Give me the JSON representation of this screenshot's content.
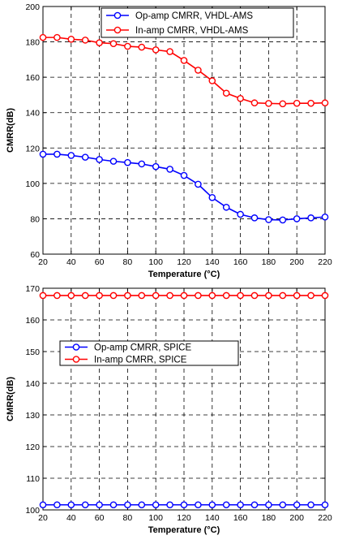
{
  "chart_data": [
    {
      "type": "line",
      "title": "",
      "xlabel": "Temperature (°C)",
      "ylabel": "CMRR(dB)",
      "xlim": [
        20,
        220
      ],
      "ylim": [
        60,
        200
      ],
      "xticks": [
        "20",
        "40",
        "60",
        "80",
        "100",
        "120",
        "140",
        "160",
        "180",
        "200",
        "220"
      ],
      "yticks": [
        "60",
        "80",
        "100",
        "120",
        "140",
        "160",
        "180",
        "200"
      ],
      "grid": true,
      "legend_position": "top-right",
      "x": [
        20,
        30,
        40,
        50,
        60,
        70,
        80,
        90,
        100,
        110,
        120,
        130,
        140,
        150,
        160,
        170,
        180,
        190,
        200,
        210,
        220
      ],
      "series": [
        {
          "name": "Op-amp CMRR, VHDL-AMS",
          "color": "#0000ff",
          "values": [
            116.5,
            116.5,
            115.8,
            114.8,
            113.5,
            112.5,
            111.8,
            111,
            109.5,
            108,
            104.5,
            99.5,
            92,
            86.5,
            82.5,
            80.5,
            79.5,
            79.3,
            80,
            80.5,
            81
          ]
        },
        {
          "name": "In-amp CMRR, VHDL-AMS",
          "color": "#ff0000",
          "values": [
            182.5,
            182.5,
            181.5,
            181,
            179.5,
            179,
            177.5,
            177,
            175.5,
            174.5,
            169.5,
            164,
            158,
            151,
            148,
            145.5,
            145.2,
            145,
            145.3,
            145.3,
            145.5
          ]
        }
      ]
    },
    {
      "type": "line",
      "title": "",
      "xlabel": "Temperature (°C)",
      "ylabel": "CMRR(dB)",
      "xlim": [
        20,
        220
      ],
      "ylim": [
        100,
        170
      ],
      "xticks": [
        "20",
        "40",
        "60",
        "80",
        "100",
        "120",
        "140",
        "160",
        "180",
        "200",
        "220"
      ],
      "yticks": [
        "100",
        "110",
        "120",
        "130",
        "140",
        "150",
        "160",
        "170"
      ],
      "grid": true,
      "legend_position": "center-left",
      "x": [
        20,
        30,
        40,
        50,
        60,
        70,
        80,
        90,
        100,
        110,
        120,
        130,
        140,
        150,
        160,
        170,
        180,
        190,
        200,
        210,
        220
      ],
      "series": [
        {
          "name": "Op-amp CMRR, SPICE",
          "color": "#0000ff",
          "values": [
            101.6,
            101.6,
            101.6,
            101.6,
            101.6,
            101.6,
            101.6,
            101.6,
            101.6,
            101.6,
            101.6,
            101.6,
            101.6,
            101.6,
            101.6,
            101.6,
            101.6,
            101.6,
            101.6,
            101.6,
            101.6
          ]
        },
        {
          "name": "In-amp CMRR, SPICE",
          "color": "#ff0000",
          "values": [
            167.7,
            167.7,
            167.7,
            167.7,
            167.7,
            167.7,
            167.7,
            167.7,
            167.7,
            167.7,
            167.7,
            167.7,
            167.7,
            167.7,
            167.7,
            167.7,
            167.7,
            167.7,
            167.7,
            167.7,
            167.7
          ]
        }
      ]
    }
  ]
}
